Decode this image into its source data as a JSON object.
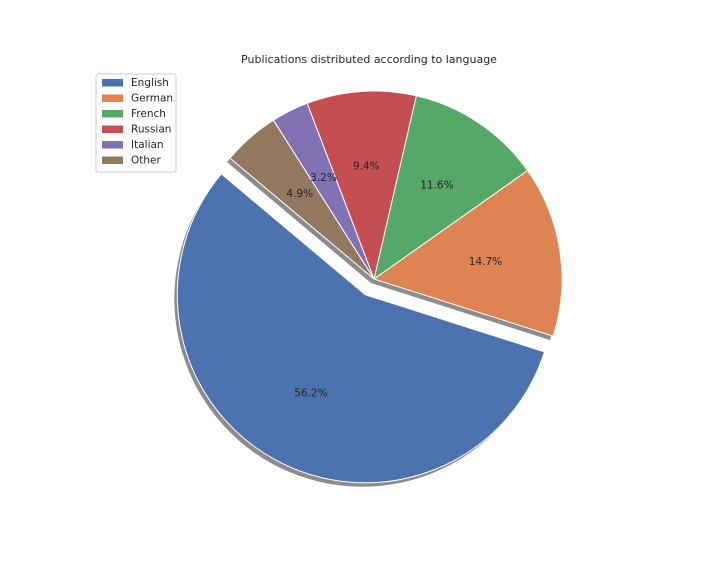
{
  "chart_data": {
    "type": "pie",
    "title": "Publications distributed according to language",
    "categories": [
      "English",
      "German",
      "French",
      "Russian",
      "Italian",
      "Other"
    ],
    "values": [
      56.2,
      14.7,
      11.6,
      9.4,
      3.2,
      4.9
    ],
    "value_labels": [
      "56.2%",
      "14.7%",
      "11.6%",
      "9.4%",
      "3.2%",
      "4.9%"
    ],
    "colors": [
      "#4c72b0",
      "#dd8452",
      "#55a868",
      "#c44e52",
      "#8172b3",
      "#937860"
    ],
    "exploded": [
      "English"
    ],
    "shadow": true,
    "legend_position": "upper-left"
  }
}
